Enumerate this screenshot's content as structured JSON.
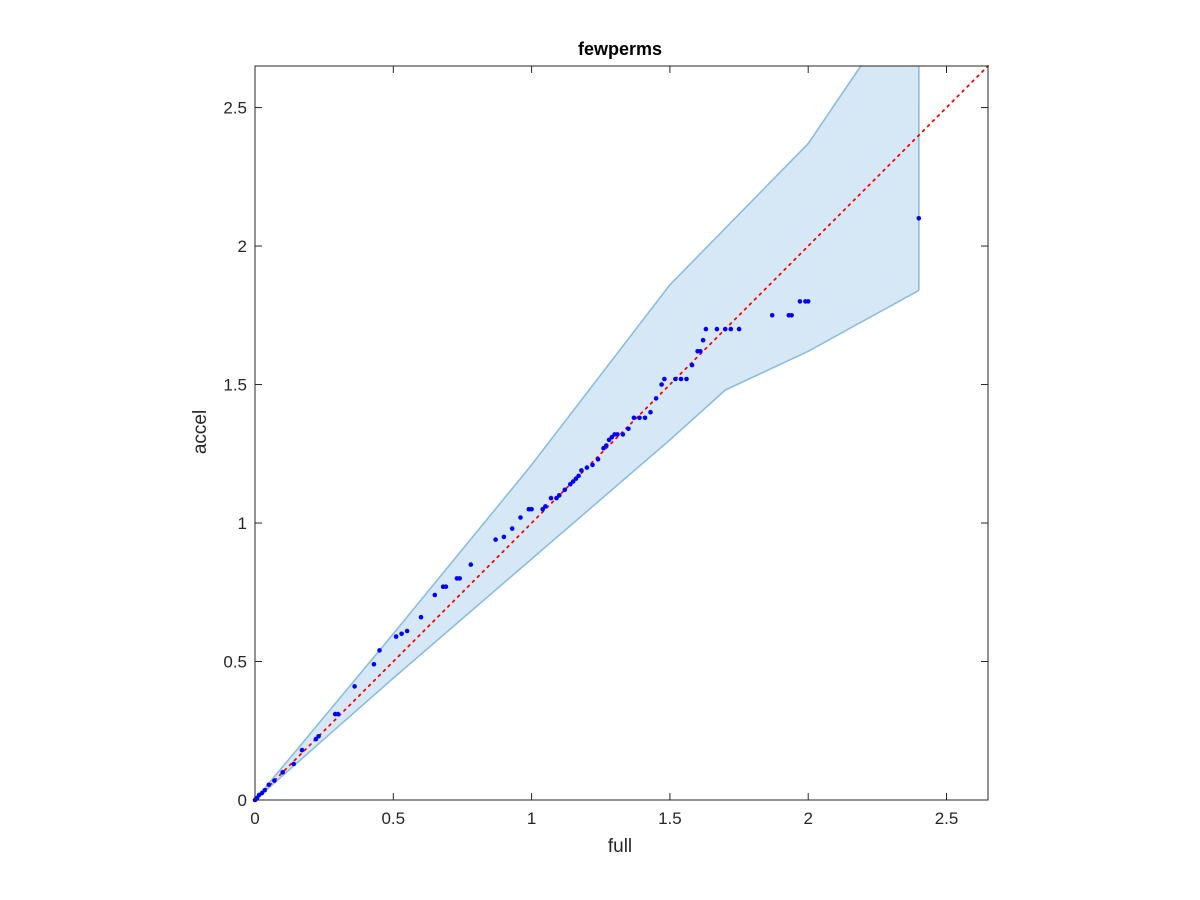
{
  "chart_data": {
    "type": "scatter",
    "title": "fewperms",
    "xlabel": "full",
    "ylabel": "accel",
    "xlim": [
      0,
      2.65
    ],
    "ylim": [
      0,
      2.65
    ],
    "xticks": [
      "0",
      "0.5",
      "1",
      "1.5",
      "2",
      "2.5"
    ],
    "yticks": [
      "0",
      "0.5",
      "1",
      "1.5",
      "2",
      "2.5"
    ],
    "grid": false,
    "colors": {
      "points": "#0000ff",
      "reference_line": "#ff0000",
      "band_fill": "#d6e8f5",
      "band_edge": "#8bbde0",
      "axes": "#262626"
    },
    "reference_line": {
      "x": [
        0,
        2.65
      ],
      "y": [
        0,
        2.65
      ],
      "style": "dotted"
    },
    "band": {
      "upper": [
        [
          0,
          0
        ],
        [
          0.5,
          0.6
        ],
        [
          1.0,
          1.21
        ],
        [
          1.5,
          1.86
        ],
        [
          2.0,
          2.37
        ],
        [
          2.19,
          2.65
        ],
        [
          2.4,
          2.65
        ]
      ],
      "lower": [
        [
          0,
          0
        ],
        [
          0.5,
          0.44
        ],
        [
          1.0,
          0.87
        ],
        [
          1.5,
          1.3
        ],
        [
          1.7,
          1.48
        ],
        [
          2.0,
          1.62
        ],
        [
          2.4,
          1.84
        ]
      ]
    },
    "points": [
      [
        0.0,
        0.0
      ],
      [
        0.003,
        0.003
      ],
      [
        0.008,
        0.008
      ],
      [
        0.015,
        0.018
      ],
      [
        0.025,
        0.025
      ],
      [
        0.035,
        0.035
      ],
      [
        0.05,
        0.055
      ],
      [
        0.07,
        0.07
      ],
      [
        0.1,
        0.1
      ],
      [
        0.14,
        0.13
      ],
      [
        0.17,
        0.18
      ],
      [
        0.22,
        0.22
      ],
      [
        0.23,
        0.23
      ],
      [
        0.29,
        0.31
      ],
      [
        0.3,
        0.31
      ],
      [
        0.36,
        0.41
      ],
      [
        0.43,
        0.49
      ],
      [
        0.45,
        0.54
      ],
      [
        0.51,
        0.59
      ],
      [
        0.53,
        0.6
      ],
      [
        0.55,
        0.61
      ],
      [
        0.6,
        0.66
      ],
      [
        0.65,
        0.74
      ],
      [
        0.68,
        0.77
      ],
      [
        0.69,
        0.77
      ],
      [
        0.73,
        0.8
      ],
      [
        0.74,
        0.8
      ],
      [
        0.78,
        0.85
      ],
      [
        0.87,
        0.94
      ],
      [
        0.9,
        0.95
      ],
      [
        0.93,
        0.98
      ],
      [
        0.96,
        1.02
      ],
      [
        0.99,
        1.05
      ],
      [
        1.0,
        1.05
      ],
      [
        1.04,
        1.05
      ],
      [
        1.05,
        1.06
      ],
      [
        1.07,
        1.09
      ],
      [
        1.09,
        1.09
      ],
      [
        1.1,
        1.1
      ],
      [
        1.12,
        1.12
      ],
      [
        1.14,
        1.14
      ],
      [
        1.15,
        1.15
      ],
      [
        1.16,
        1.16
      ],
      [
        1.17,
        1.17
      ],
      [
        1.18,
        1.19
      ],
      [
        1.2,
        1.2
      ],
      [
        1.22,
        1.21
      ],
      [
        1.24,
        1.23
      ],
      [
        1.26,
        1.27
      ],
      [
        1.27,
        1.28
      ],
      [
        1.28,
        1.3
      ],
      [
        1.29,
        1.31
      ],
      [
        1.3,
        1.32
      ],
      [
        1.31,
        1.32
      ],
      [
        1.33,
        1.32
      ],
      [
        1.35,
        1.34
      ],
      [
        1.37,
        1.38
      ],
      [
        1.39,
        1.38
      ],
      [
        1.41,
        1.38
      ],
      [
        1.43,
        1.4
      ],
      [
        1.45,
        1.45
      ],
      [
        1.47,
        1.5
      ],
      [
        1.48,
        1.52
      ],
      [
        1.52,
        1.52
      ],
      [
        1.54,
        1.52
      ],
      [
        1.56,
        1.52
      ],
      [
        1.58,
        1.57
      ],
      [
        1.6,
        1.62
      ],
      [
        1.61,
        1.62
      ],
      [
        1.62,
        1.66
      ],
      [
        1.63,
        1.7
      ],
      [
        1.67,
        1.7
      ],
      [
        1.7,
        1.7
      ],
      [
        1.72,
        1.7
      ],
      [
        1.75,
        1.7
      ],
      [
        1.87,
        1.75
      ],
      [
        1.93,
        1.75
      ],
      [
        1.94,
        1.75
      ],
      [
        1.97,
        1.8
      ],
      [
        1.99,
        1.8
      ],
      [
        2.0,
        1.8
      ],
      [
        2.4,
        2.1
      ]
    ]
  }
}
